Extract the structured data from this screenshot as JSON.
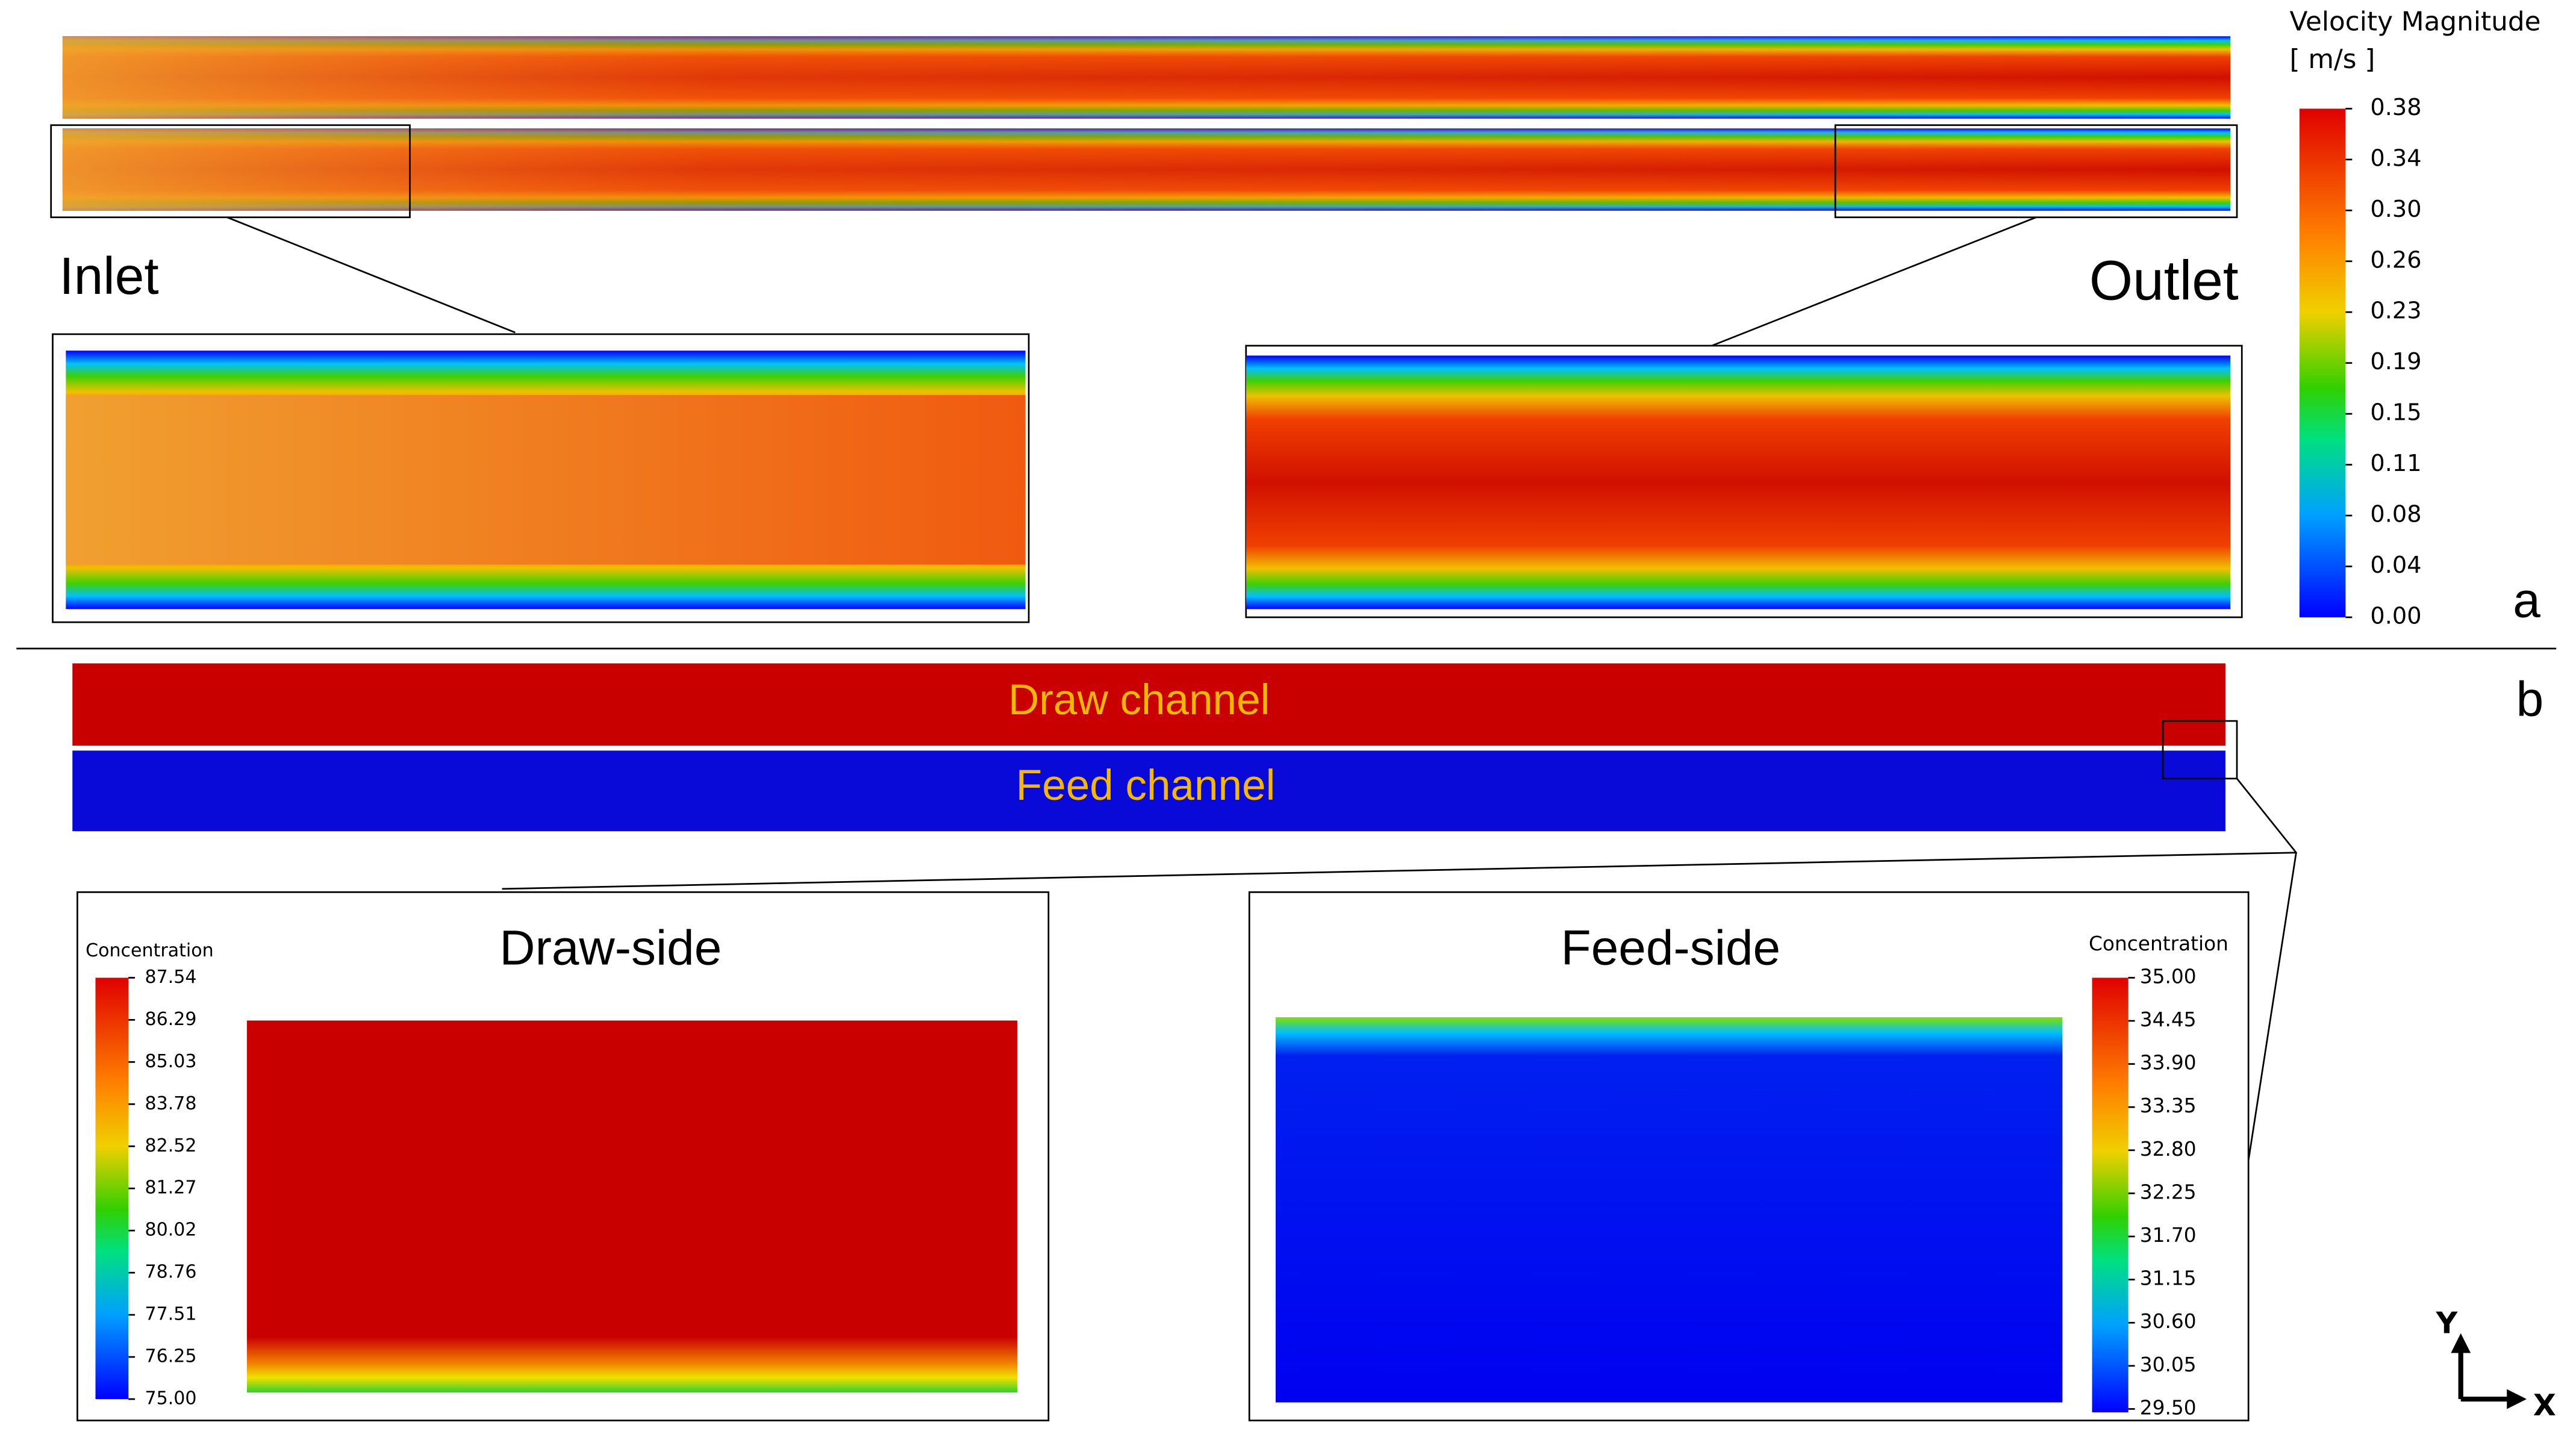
{
  "velocity_legend": {
    "title": "Velocity Magnitude",
    "unit": "[ m/s ]",
    "ticks": [
      "0.38",
      "0.34",
      "0.30",
      "0.26",
      "0.23",
      "0.19",
      "0.15",
      "0.11",
      "0.08",
      "0.04",
      "0.00"
    ]
  },
  "labels": {
    "inlet": "Inlet",
    "outlet": "Outlet",
    "panel_a": "a",
    "panel_b": "b",
    "draw_channel": "Draw channel",
    "feed_channel": "Feed channel"
  },
  "draw_side": {
    "title": "Draw-side",
    "legend_title": "Concentration",
    "ticks": [
      "87.54",
      "86.29",
      "85.03",
      "83.78",
      "82.52",
      "81.27",
      "80.02",
      "78.76",
      "77.51",
      "76.25",
      "75.00"
    ]
  },
  "feed_side": {
    "title": "Feed-side",
    "legend_title": "Concentration",
    "ticks": [
      "35.00",
      "34.45",
      "33.90",
      "33.35",
      "32.80",
      "32.25",
      "31.70",
      "31.15",
      "30.60",
      "30.05",
      "29.50"
    ]
  },
  "axes": {
    "y": "Y",
    "x": "X"
  }
}
